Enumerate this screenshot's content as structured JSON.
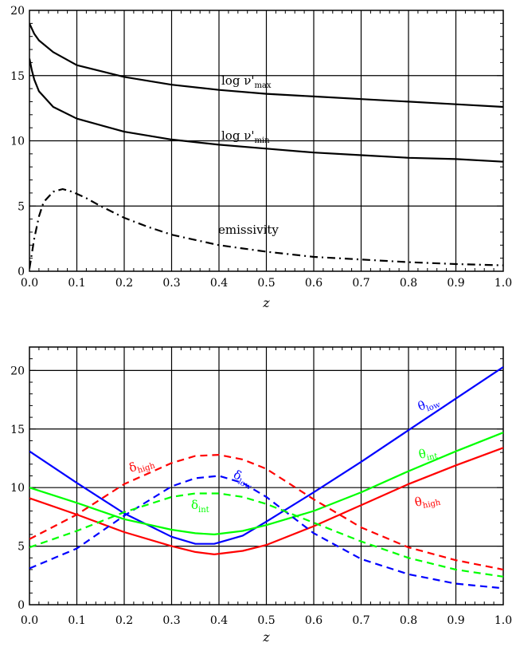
{
  "chart_data": [
    {
      "type": "line",
      "xlabel": "z",
      "xlim": [
        0,
        1
      ],
      "ylim": [
        0,
        20
      ],
      "xticks": [
        "0.0",
        "0.1",
        "0.2",
        "0.3",
        "0.4",
        "0.5",
        "0.6",
        "0.7",
        "0.8",
        "0.9",
        "1.0"
      ],
      "yticks": [
        "0",
        "5",
        "10",
        "15",
        "20"
      ],
      "grid": true,
      "series": [
        {
          "name": "log ν'max",
          "label_main": "log  ν'",
          "label_sub": "max",
          "color": "#000000",
          "dash": "solid",
          "x": [
            0.0,
            0.01,
            0.02,
            0.05,
            0.1,
            0.2,
            0.3,
            0.4,
            0.5,
            0.6,
            0.7,
            0.8,
            0.9,
            1.0
          ],
          "y": [
            19.0,
            18.2,
            17.7,
            16.8,
            15.8,
            14.9,
            14.3,
            13.9,
            13.6,
            13.4,
            13.2,
            13.0,
            12.8,
            12.6
          ]
        },
        {
          "name": "log ν'min",
          "label_main": "log  ν'",
          "label_sub": "min",
          "color": "#000000",
          "dash": "solid",
          "x": [
            0.0,
            0.005,
            0.01,
            0.02,
            0.05,
            0.1,
            0.2,
            0.3,
            0.4,
            0.5,
            0.6,
            0.7,
            0.8,
            0.9,
            1.0
          ],
          "y": [
            16.3,
            15.4,
            14.7,
            13.8,
            12.6,
            11.7,
            10.7,
            10.1,
            9.7,
            9.4,
            9.1,
            8.9,
            8.7,
            8.6,
            8.4
          ]
        },
        {
          "name": "emissivity",
          "label_main": "emissivity",
          "label_sub": "",
          "color": "#000000",
          "dash": "dashdot",
          "x": [
            0.0,
            0.01,
            0.02,
            0.03,
            0.05,
            0.07,
            0.09,
            0.12,
            0.15,
            0.2,
            0.25,
            0.3,
            0.4,
            0.5,
            0.6,
            0.7,
            0.8,
            0.9,
            1.0
          ],
          "y": [
            0.2,
            2.5,
            4.2,
            5.3,
            6.1,
            6.3,
            6.1,
            5.6,
            5.0,
            4.1,
            3.4,
            2.8,
            2.0,
            1.5,
            1.1,
            0.9,
            0.7,
            0.55,
            0.45
          ]
        }
      ]
    },
    {
      "type": "line",
      "xlabel": "z",
      "xlim": [
        0,
        1
      ],
      "ylim": [
        0,
        22
      ],
      "xticks": [
        "0.0",
        "0.1",
        "0.2",
        "0.3",
        "0.4",
        "0.5",
        "0.6",
        "0.7",
        "0.8",
        "0.9",
        "1.0"
      ],
      "yticks": [
        "0",
        "5",
        "10",
        "15",
        "20"
      ],
      "grid": true,
      "series": [
        {
          "name": "θlow",
          "label_main": "θ",
          "label_sub": "low",
          "color": "#0000ff",
          "dash": "solid",
          "x": [
            0.0,
            0.1,
            0.2,
            0.3,
            0.35,
            0.39,
            0.45,
            0.5,
            0.6,
            0.7,
            0.8,
            0.9,
            1.0
          ],
          "y": [
            13.1,
            10.4,
            7.8,
            5.8,
            5.2,
            5.2,
            5.9,
            7.1,
            9.6,
            12.2,
            14.9,
            17.6,
            20.3
          ]
        },
        {
          "name": "θint",
          "label_main": "θ",
          "label_sub": "int",
          "color": "#00ff00",
          "dash": "solid",
          "x": [
            0.0,
            0.1,
            0.2,
            0.3,
            0.35,
            0.39,
            0.45,
            0.5,
            0.6,
            0.7,
            0.8,
            0.9,
            1.0
          ],
          "y": [
            10.0,
            8.7,
            7.3,
            6.4,
            6.1,
            6.0,
            6.3,
            6.8,
            8.0,
            9.6,
            11.4,
            13.1,
            14.7
          ]
        },
        {
          "name": "θhigh",
          "label_main": "θ",
          "label_sub": "high",
          "color": "#ff0000",
          "dash": "solid",
          "x": [
            0.0,
            0.1,
            0.2,
            0.3,
            0.35,
            0.39,
            0.45,
            0.5,
            0.6,
            0.7,
            0.8,
            0.9,
            1.0
          ],
          "y": [
            9.1,
            7.7,
            6.2,
            5.0,
            4.5,
            4.3,
            4.6,
            5.1,
            6.7,
            8.5,
            10.3,
            11.9,
            13.4
          ]
        },
        {
          "name": "δhigh",
          "label_main": "δ",
          "label_sub": "high",
          "color": "#ff0000",
          "dash": "dash",
          "x": [
            0.0,
            0.1,
            0.2,
            0.3,
            0.35,
            0.4,
            0.45,
            0.5,
            0.6,
            0.7,
            0.8,
            0.9,
            1.0
          ],
          "y": [
            5.6,
            7.7,
            10.3,
            12.1,
            12.7,
            12.8,
            12.4,
            11.6,
            9.0,
            6.6,
            4.9,
            3.8,
            3.0
          ]
        },
        {
          "name": "δlow",
          "label_main": "δ",
          "label_sub": "low",
          "color": "#0000ff",
          "dash": "dash",
          "x": [
            0.0,
            0.1,
            0.2,
            0.3,
            0.35,
            0.4,
            0.45,
            0.5,
            0.6,
            0.7,
            0.8,
            0.9,
            1.0
          ],
          "y": [
            3.1,
            4.8,
            7.6,
            10.1,
            10.8,
            11.0,
            10.4,
            9.2,
            6.1,
            3.9,
            2.6,
            1.8,
            1.4
          ]
        },
        {
          "name": "δint",
          "label_main": "δ",
          "label_sub": "int",
          "color": "#00ff00",
          "dash": "dash",
          "x": [
            0.0,
            0.1,
            0.2,
            0.3,
            0.35,
            0.4,
            0.45,
            0.5,
            0.6,
            0.7,
            0.8,
            0.9,
            1.0
          ],
          "y": [
            4.9,
            6.3,
            7.9,
            9.2,
            9.5,
            9.5,
            9.2,
            8.6,
            7.0,
            5.4,
            4.0,
            3.0,
            2.4
          ]
        }
      ]
    }
  ]
}
